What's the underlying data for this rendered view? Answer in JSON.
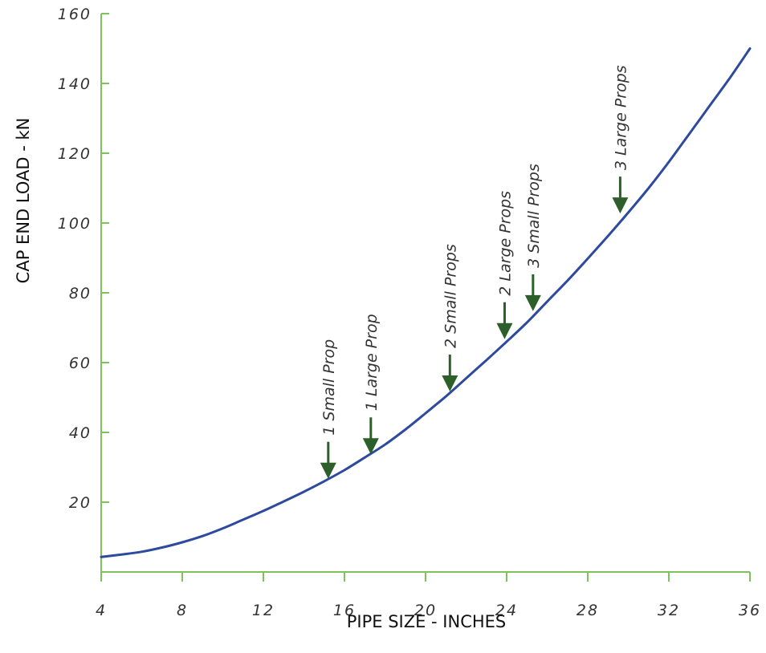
{
  "chart_data": {
    "type": "line",
    "title": "",
    "xlabel": "PIPE SIZE - INCHES",
    "ylabel": "CAP END LOAD - kN",
    "xlim": [
      4,
      36
    ],
    "ylim": [
      0,
      160
    ],
    "x_ticks": [
      4,
      8,
      12,
      16,
      20,
      24,
      28,
      32,
      36
    ],
    "x_tick_labels": [
      "4",
      "8",
      "12",
      "16",
      "20",
      "24",
      "28",
      "32",
      "36"
    ],
    "y_ticks": [
      20,
      40,
      60,
      80,
      100,
      120,
      140,
      160
    ],
    "y_tick_labels": [
      "20",
      "40",
      "60",
      "80",
      "100",
      "120",
      "140",
      "160"
    ],
    "grid": false,
    "legend": "none",
    "axis_color": "#7dc35b",
    "series": [
      {
        "color": "#2e4a9e",
        "x": [
          4,
          5,
          6,
          7,
          8,
          9,
          10,
          11,
          12,
          13,
          14,
          15,
          16,
          17,
          18,
          19,
          20,
          21,
          22,
          23,
          24,
          25,
          26,
          27,
          28,
          29,
          30,
          31,
          32,
          33,
          34,
          35,
          36
        ],
        "y": [
          4.3,
          5,
          5.8,
          7,
          8.5,
          10.3,
          12.5,
          15,
          17.5,
          20.2,
          23,
          26,
          29.2,
          32.8,
          36.5,
          40.8,
          45.5,
          50.3,
          55.5,
          60.7,
          66,
          71.5,
          77.5,
          83.5,
          89.8,
          96.3,
          103,
          110,
          117.5,
          125.5,
          133.5,
          141.5,
          150
        ]
      }
    ],
    "annotations": [
      {
        "text": "1 Small Prop",
        "x": 15.2,
        "y": 26.5
      },
      {
        "text": "1 Large Prop",
        "x": 17.3,
        "y": 33.5
      },
      {
        "text": "2 Small Props",
        "x": 21.2,
        "y": 51.5
      },
      {
        "text": "2 Large Props",
        "x": 23.9,
        "y": 66.5
      },
      {
        "text": "3 Small Props",
        "x": 25.3,
        "y": 74.5
      },
      {
        "text": "3 Large Props",
        "x": 29.6,
        "y": 102.5
      }
    ],
    "marker_color": "#2d5f2a"
  }
}
